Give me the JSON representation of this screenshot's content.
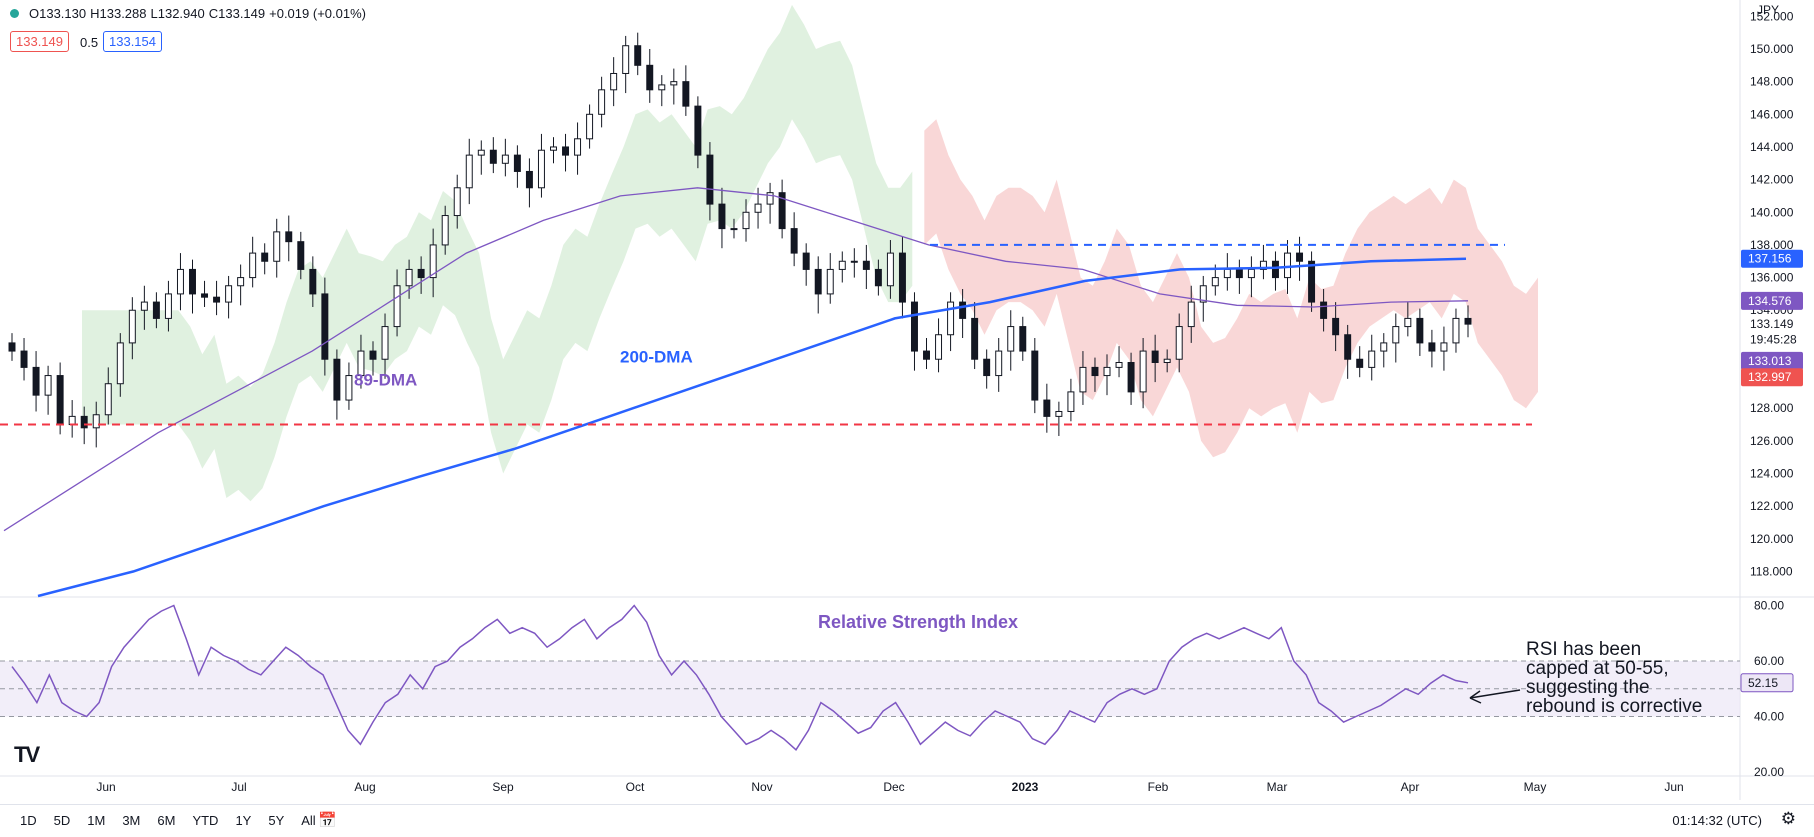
{
  "header": {
    "ohlc": [
      "O133.130",
      "H133.288",
      "L132.940",
      "C133.149",
      "+0.019 (+0.01%)"
    ],
    "badge_red": "133.149",
    "badge_mid": "0.5",
    "badge_blue": "133.154"
  },
  "colors": {
    "up_candle": "#131722",
    "down_candle": "#131722",
    "cloud_bull": "#a5d6a7",
    "cloud_bear": "#ef9a9a",
    "ma89": "#7e57c2",
    "ma200": "#2962ff",
    "support_line": "#f23645",
    "resistance_line": "#2962ff",
    "rsi_line": "#7e57c2",
    "rsi_band": "#ede7f6"
  },
  "chart_data": [
    {
      "type": "candlestick",
      "currency": "JPY",
      "y_ticks": [
        "152.000",
        "150.000",
        "148.000",
        "146.000",
        "144.000",
        "142.000",
        "140.000",
        "138.000",
        "136.000",
        "134.000",
        "128.000",
        "126.000",
        "124.000",
        "122.000",
        "120.000",
        "118.000"
      ],
      "ylim": [
        116.5,
        153.0
      ],
      "x_ticks": [
        "Jun",
        "Jul",
        "Aug",
        "Sep",
        "Oct",
        "Nov",
        "Dec",
        "2023",
        "Feb",
        "Mar",
        "Apr",
        "May",
        "Jun"
      ],
      "price_labels": [
        {
          "value": "137.156",
          "num": 137.156,
          "color": "#2962ff"
        },
        {
          "value": "134.576",
          "num": 134.576,
          "color": "#7e57c2"
        },
        {
          "value": "133.149",
          "num": 133.149,
          "color": "none"
        },
        {
          "value": "19:45:28",
          "num": 132.2,
          "color": "none"
        },
        {
          "value": "133.013",
          "num": 130.9,
          "color": "#7e57c2"
        },
        {
          "value": "132.997",
          "num": 129.9,
          "color": "#ef5350"
        }
      ],
      "annotations": [
        "89-DMA",
        "200-DMA"
      ],
      "closes_approx": [
        131.5,
        130.5,
        128.8,
        130.0,
        127.0,
        127.5,
        126.8,
        127.6,
        129.5,
        132.0,
        134.0,
        134.5,
        133.5,
        135.0,
        136.5,
        135.0,
        134.8,
        134.5,
        135.5,
        136.0,
        137.5,
        137.0,
        138.8,
        138.2,
        136.5,
        135.0,
        131.0,
        128.5,
        130.0,
        131.5,
        131.0,
        133.0,
        135.5,
        136.5,
        136.0,
        138.0,
        139.8,
        141.5,
        143.5,
        143.8,
        143.0,
        143.5,
        142.5,
        141.5,
        143.8,
        144.0,
        143.5,
        144.5,
        146.0,
        147.5,
        148.5,
        150.2,
        149.0,
        147.5,
        147.8,
        148.0,
        146.5,
        143.5,
        140.5,
        139.0,
        139.0,
        140.0,
        140.5,
        141.2,
        139.0,
        137.5,
        136.5,
        135.0,
        136.5,
        137.0,
        137.0,
        136.5,
        135.5,
        137.5,
        134.5,
        131.5,
        131.0,
        132.5,
        134.5,
        133.5,
        131.0,
        130.0,
        131.5,
        133.0,
        131.5,
        128.5,
        127.5,
        127.8,
        129.0,
        130.5,
        130.0,
        130.5,
        130.8,
        129.0,
        131.5,
        130.8,
        131.0,
        133.0,
        134.5,
        135.5,
        136.0,
        136.5,
        136.0,
        136.5,
        137.0,
        136.0,
        137.5,
        137.0,
        134.5,
        133.5,
        132.5,
        131.0,
        130.5,
        131.5,
        132.0,
        133.0,
        133.5,
        132.0,
        131.5,
        132.0,
        133.5,
        133.149
      ],
      "ma89_approx": [
        120.5,
        123.5,
        126.5,
        129.0,
        131.5,
        134.5,
        137.5,
        139.5,
        141.0,
        141.5,
        141.0,
        139.5,
        138.0,
        137.0,
        136.5,
        135.0,
        134.3,
        134.2,
        134.5,
        134.576
      ],
      "ma200_approx": [
        116.5,
        118.0,
        120.0,
        122.0,
        123.8,
        125.5,
        127.5,
        129.5,
        131.5,
        133.5,
        134.5,
        135.8,
        136.5,
        136.6,
        137.0,
        137.156
      ],
      "support": 127.0,
      "resistance": 138.0
    },
    {
      "type": "line",
      "title": "Relative Strength Index",
      "y_ticks": [
        "80.00",
        "60.00",
        "40.00",
        "20.00"
      ],
      "ylim": [
        20,
        82
      ],
      "band": [
        40,
        60
      ],
      "midline": 50,
      "last_value": "52.15",
      "last_num": 52.15,
      "values_approx": [
        58,
        52,
        45,
        55,
        45,
        42,
        40,
        45,
        58,
        65,
        70,
        75,
        78,
        80,
        68,
        55,
        65,
        62,
        60,
        57,
        55,
        60,
        65,
        62,
        58,
        55,
        45,
        35,
        30,
        38,
        45,
        48,
        55,
        50,
        58,
        60,
        65,
        68,
        72,
        75,
        70,
        72,
        70,
        65,
        68,
        72,
        75,
        68,
        72,
        75,
        80,
        74,
        62,
        55,
        60,
        55,
        48,
        40,
        35,
        30,
        32,
        35,
        32,
        28,
        35,
        45,
        42,
        38,
        34,
        36,
        42,
        45,
        38,
        30,
        34,
        38,
        35,
        33,
        38,
        42,
        40,
        38,
        32,
        30,
        35,
        42,
        40,
        38,
        45,
        48,
        50,
        48,
        50,
        60,
        65,
        68,
        70,
        68,
        70,
        72,
        70,
        68,
        72,
        60,
        55,
        45,
        42,
        38,
        40,
        42,
        44,
        47,
        50,
        48,
        52,
        55,
        53,
        52.15
      ],
      "note": [
        "RSI has been",
        "capped at 50-55,",
        "suggesting the",
        "rebound is corrective"
      ]
    }
  ],
  "bottom_bar": {
    "ranges": [
      "1D",
      "5D",
      "1M",
      "3M",
      "6M",
      "YTD",
      "1Y",
      "5Y",
      "All"
    ],
    "time": "01:14:32 (UTC)"
  },
  "logo": "TV"
}
